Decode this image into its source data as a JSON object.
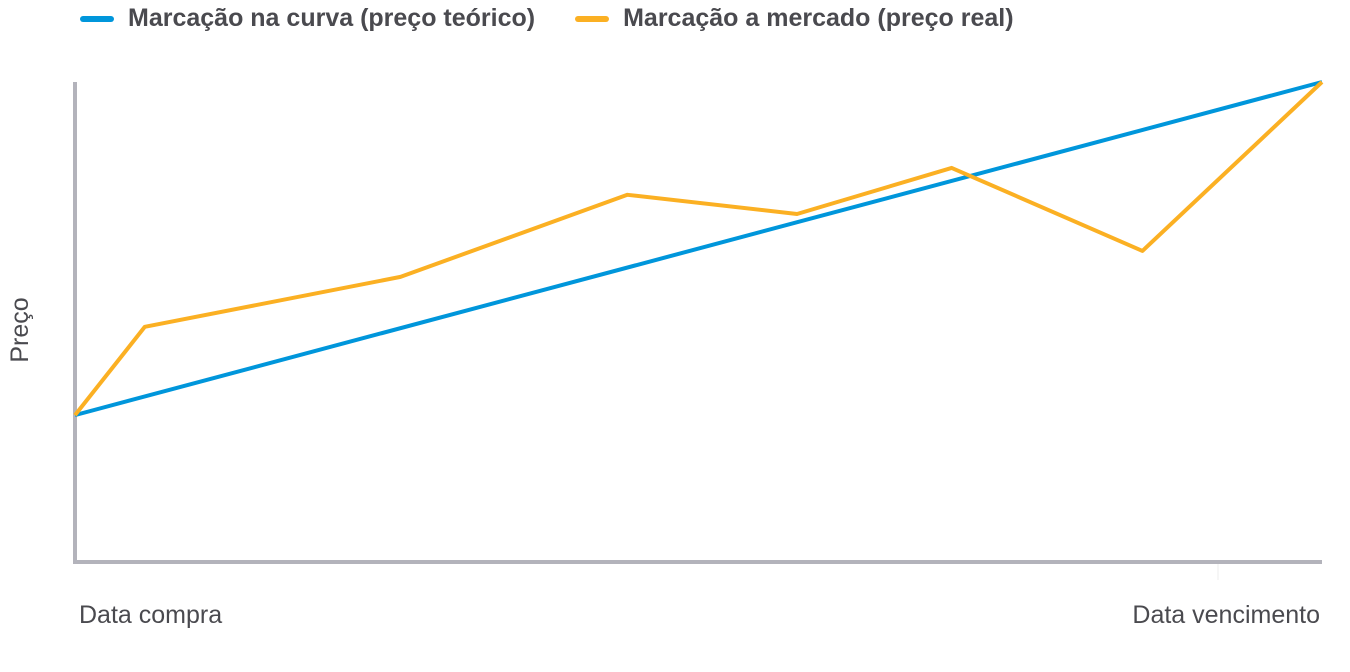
{
  "chart_data": {
    "type": "line",
    "title": "",
    "xlabel": "",
    "ylabel": "Preço",
    "x_tick_labels": [
      "Data compra",
      "Data vencimento"
    ],
    "xlim": [
      0,
      100
    ],
    "ylim": [
      0,
      100
    ],
    "grid": false,
    "legend_placement": "top-left",
    "series": [
      {
        "name": "Marcação na curva (preço teórico)",
        "color": "#0096db",
        "x": [
          0,
          100
        ],
        "y": [
          30.6,
          100
        ]
      },
      {
        "name": "Marcação a mercado (preço real)",
        "color": "#fbb023",
        "x": [
          0,
          5.6,
          26.1,
          44.3,
          57.9,
          70.3,
          85.6,
          100
        ],
        "y": [
          30.6,
          49,
          59.4,
          76.5,
          72.5,
          82.1,
          64.8,
          100
        ]
      }
    ],
    "axis_color": "#b3b3bb"
  }
}
